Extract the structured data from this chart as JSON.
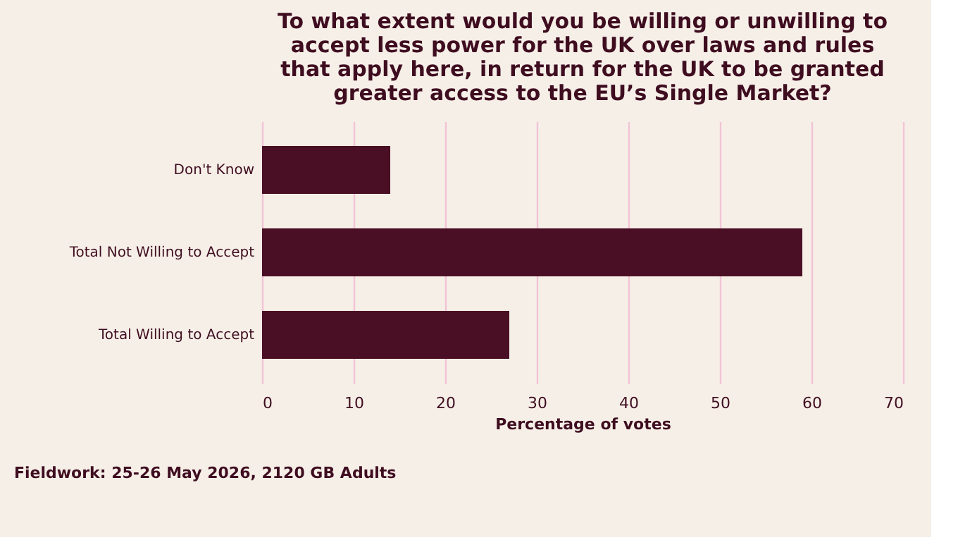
{
  "chart_data": {
    "type": "bar",
    "orientation": "horizontal",
    "title": "To what extent would you be willing or unwilling to\naccept less power for the UK over laws and rules\nthat apply here, in return for the UK to be granted\ngreater access to the EU’s Single Market?",
    "categories": [
      "Don't Know",
      "Total Not Willing to Accept",
      "Total Willing to Accept"
    ],
    "values": [
      14,
      59,
      27
    ],
    "color": "#4a0f24",
    "xlim": [
      0,
      70
    ],
    "xticks": [
      0,
      10,
      20,
      30,
      40,
      50,
      60,
      70
    ],
    "xlabel": "Percentage of votes",
    "grid": "x",
    "annotations": [
      "Fieldwork: 25-26 May 2026, 2120 GB Adults"
    ]
  }
}
